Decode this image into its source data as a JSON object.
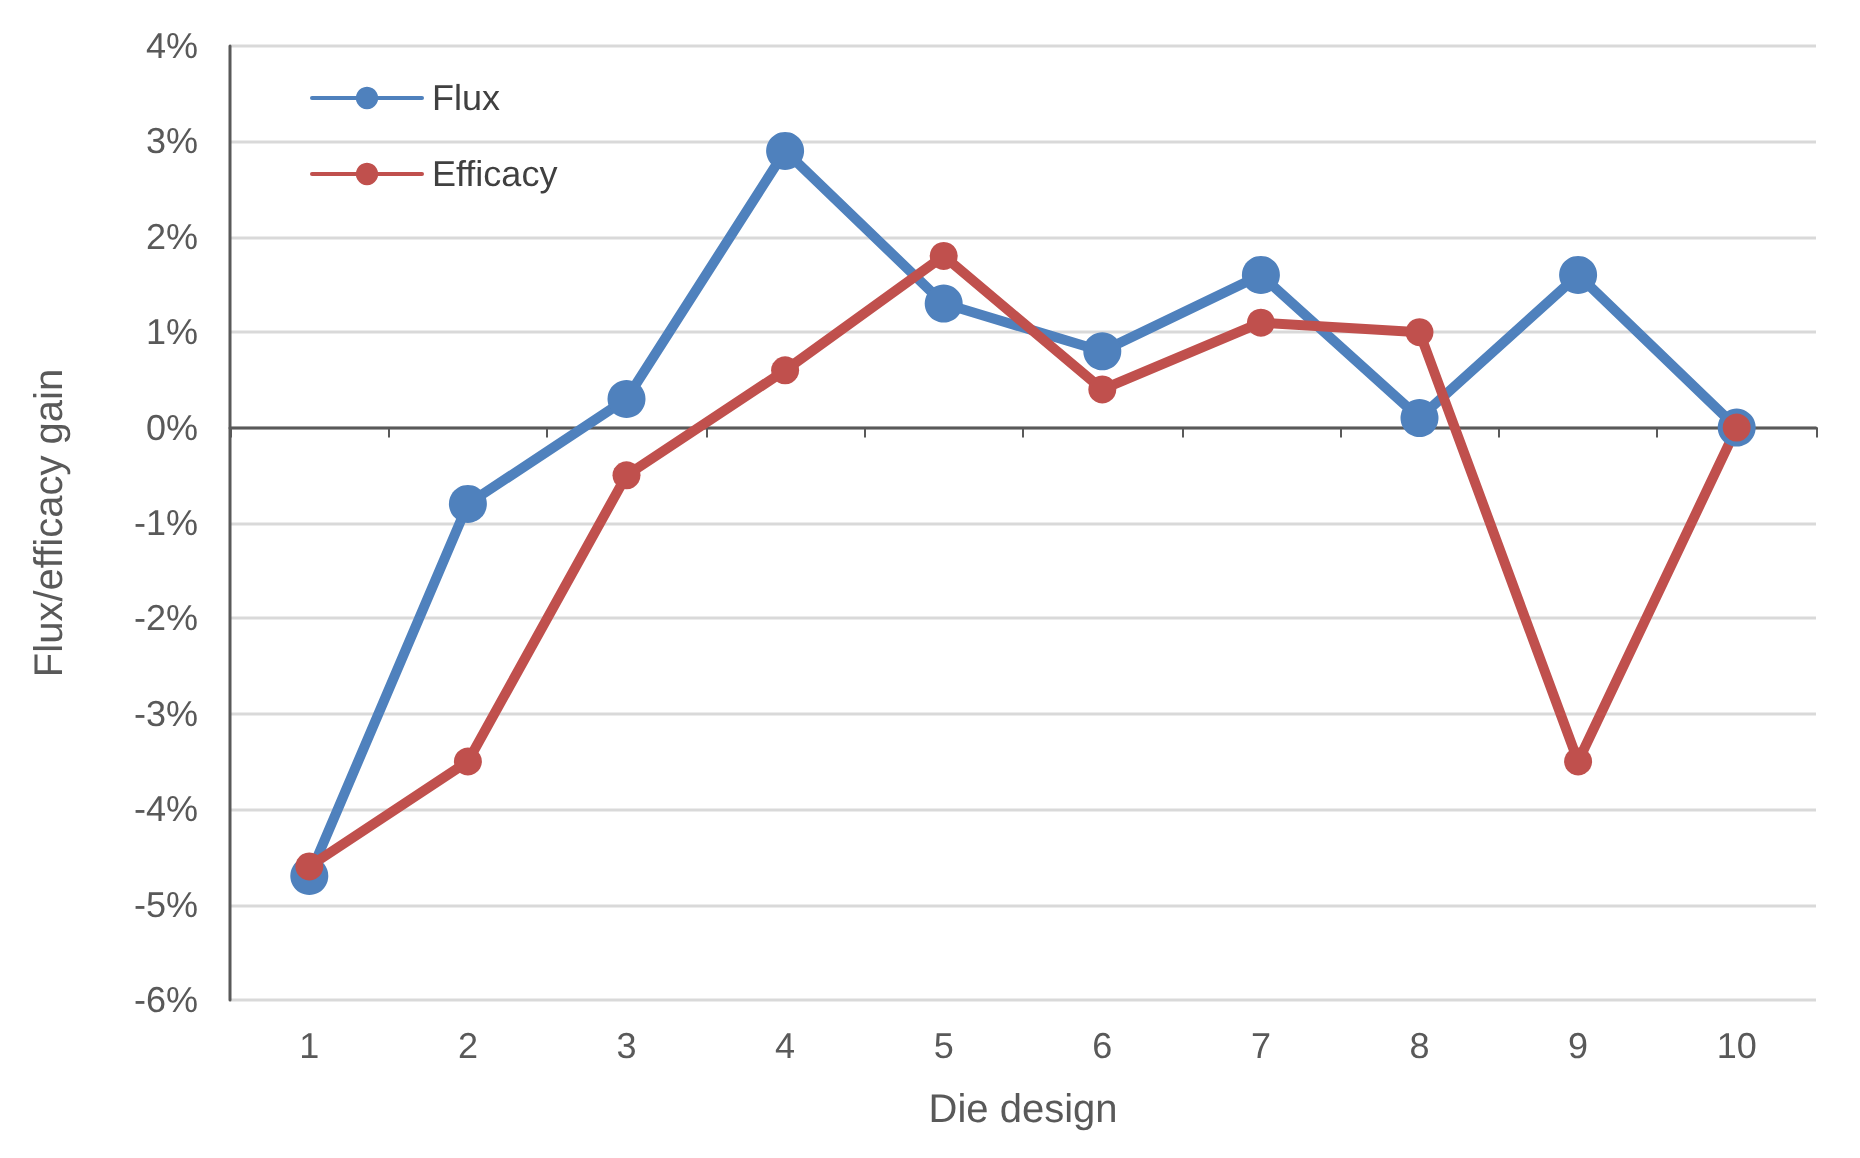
{
  "chart_data": {
    "type": "line",
    "xlabel": "Die design",
    "ylabel": "Flux/efficacy gain",
    "categories": [
      "1",
      "2",
      "3",
      "4",
      "5",
      "6",
      "7",
      "8",
      "9",
      "10"
    ],
    "series": [
      {
        "name": "Flux",
        "color": "#4f81bd",
        "values": [
          -4.7,
          -0.8,
          0.3,
          2.9,
          1.3,
          0.8,
          1.6,
          0.1,
          1.6,
          0
        ]
      },
      {
        "name": "Efficacy",
        "color": "#c0504d",
        "values": [
          -4.6,
          -3.5,
          -0.5,
          0.6,
          1.8,
          0.4,
          1.1,
          1.0,
          -3.5,
          0
        ]
      }
    ],
    "ylim": [
      -6,
      4
    ],
    "yticks": [
      {
        "value": -6,
        "label": "-6%"
      },
      {
        "value": -5,
        "label": "-5%"
      },
      {
        "value": -4,
        "label": "-4%"
      },
      {
        "value": -3,
        "label": "-3%"
      },
      {
        "value": -2,
        "label": "-2%"
      },
      {
        "value": -1,
        "label": "-1%"
      },
      {
        "value": 0,
        "label": "0%"
      },
      {
        "value": 1,
        "label": "1%"
      },
      {
        "value": 2,
        "label": "2%"
      },
      {
        "value": 3,
        "label": "3%"
      },
      {
        "value": 4,
        "label": "4%"
      }
    ],
    "grid": "y",
    "legend": "top left",
    "marker": "circle",
    "line_style": "solid"
  }
}
